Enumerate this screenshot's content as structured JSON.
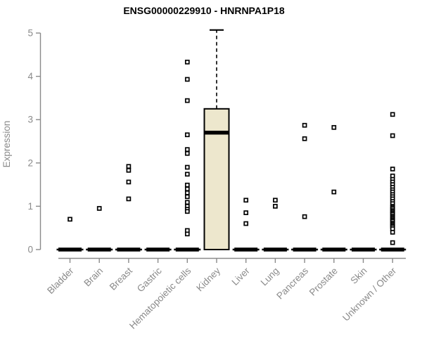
{
  "chart_data": {
    "type": "boxplot",
    "title": "ENSG00000229910 - HNRNPA1P18",
    "ylabel": "Expression",
    "xlabel": "",
    "ylim": [
      0,
      5
    ],
    "yticks": [
      0,
      1,
      2,
      3,
      4,
      5
    ],
    "grid": false,
    "legend": null,
    "categories": [
      "Bladder",
      "Brain",
      "Breast",
      "Gastric",
      "Hematopoietic cells",
      "Kidney",
      "Liver",
      "Lung",
      "Pancreas",
      "Prostate",
      "Skin",
      "Unknown / Other"
    ],
    "boxes": [
      {
        "category": "Bladder",
        "q1": 0,
        "median": 0,
        "q3": 0,
        "whisker_low": 0,
        "whisker_high": 0,
        "outliers": [
          0.7
        ]
      },
      {
        "category": "Brain",
        "q1": 0,
        "median": 0,
        "q3": 0,
        "whisker_low": 0,
        "whisker_high": 0,
        "outliers": [
          0.95
        ]
      },
      {
        "category": "Breast",
        "q1": 0,
        "median": 0,
        "q3": 0,
        "whisker_low": 0,
        "whisker_high": 0,
        "outliers": [
          1.92,
          1.83,
          1.56,
          1.17
        ]
      },
      {
        "category": "Gastric",
        "q1": 0,
        "median": 0,
        "q3": 0,
        "whisker_low": 0,
        "whisker_high": 0,
        "outliers": []
      },
      {
        "category": "Hematopoietic cells",
        "q1": 0,
        "median": 0,
        "q3": 0,
        "whisker_low": 0,
        "whisker_high": 0,
        "outliers": [
          4.33,
          3.93,
          3.44,
          2.65,
          2.31,
          2.22,
          1.9,
          1.74,
          1.49,
          1.4,
          1.31,
          1.22,
          1.09,
          1.0,
          0.93,
          0.88,
          0.44,
          0.36
        ]
      },
      {
        "category": "Kidney",
        "q1": 0,
        "median": 2.7,
        "q3": 3.25,
        "whisker_low": 0,
        "whisker_high": 5.07,
        "outliers": []
      },
      {
        "category": "Liver",
        "q1": 0,
        "median": 0,
        "q3": 0,
        "whisker_low": 0,
        "whisker_high": 0,
        "outliers": [
          1.14,
          0.85,
          0.6
        ]
      },
      {
        "category": "Lung",
        "q1": 0,
        "median": 0,
        "q3": 0,
        "whisker_low": 0,
        "whisker_high": 0,
        "outliers": [
          1.14,
          1.0
        ]
      },
      {
        "category": "Pancreas",
        "q1": 0,
        "median": 0,
        "q3": 0,
        "whisker_low": 0,
        "whisker_high": 0,
        "outliers": [
          2.87,
          2.56,
          0.76
        ]
      },
      {
        "category": "Prostate",
        "q1": 0,
        "median": 0,
        "q3": 0,
        "whisker_low": 0,
        "whisker_high": 0,
        "outliers": [
          2.82,
          1.33
        ]
      },
      {
        "category": "Skin",
        "q1": 0,
        "median": 0,
        "q3": 0,
        "whisker_low": 0,
        "whisker_high": 0,
        "outliers": []
      },
      {
        "category": "Unknown / Other",
        "q1": 0,
        "median": 0,
        "q3": 0,
        "whisker_low": 0,
        "whisker_high": 0,
        "outliers": [
          3.12,
          2.63,
          1.86,
          1.7,
          1.62,
          1.56,
          1.5,
          1.44,
          1.38,
          1.33,
          1.27,
          1.22,
          1.17,
          1.11,
          1.06,
          1.0,
          0.97,
          0.94,
          0.9,
          0.87,
          0.84,
          0.81,
          0.77,
          0.74,
          0.71,
          0.68,
          0.65,
          0.61,
          0.58,
          0.55,
          0.52,
          0.48,
          0.4,
          0.16
        ]
      }
    ],
    "colors": {
      "box_fill": "#EDE7CD",
      "box_border": "#000000",
      "median": "#000000",
      "whisker": "#000000",
      "outlier_stroke": "#000000",
      "outlier_fill": "#FFFFFF",
      "axis": "#8A8A8A",
      "text": "#8A8A8A",
      "title": "#000000",
      "background": "#FFFFFF"
    }
  }
}
